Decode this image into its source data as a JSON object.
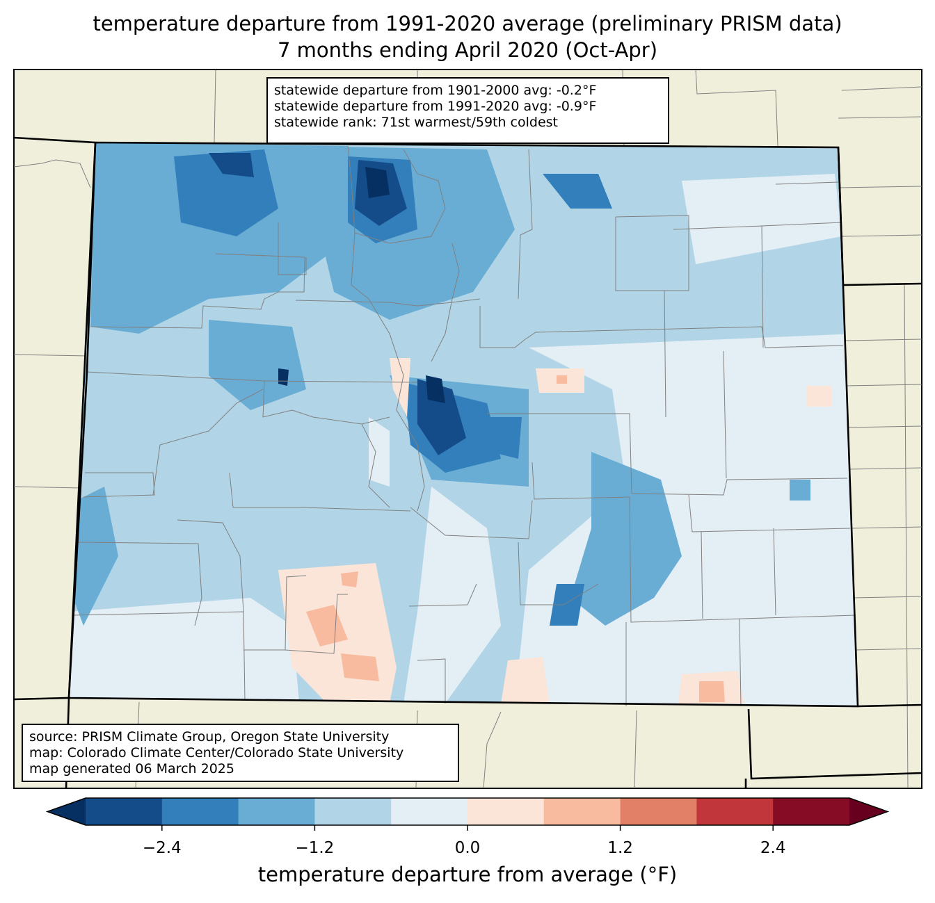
{
  "title": {
    "line1": "temperature departure from 1991-2020 average (preliminary PRISM data)",
    "line2": "7 months ending April 2020 (Oct-Apr)"
  },
  "stats": {
    "line1": "statewide departure from 1901-2000 avg: -0.2°F",
    "line2": "statewide departure from 1991-2020 avg: -0.9°F",
    "line3": "statewide rank: 71st warmest/59th coldest"
  },
  "credits": {
    "line1": "source: PRISM Climate Group, Oregon State University",
    "line2": "map: Colorado Climate Center/Colorado State University",
    "line3": "map generated 06 March 2025"
  },
  "colorbar": {
    "label": "temperature departure from average (°F)",
    "min": -3.0,
    "max": 3.0,
    "step": 0.6,
    "ticks": [
      "−2.4",
      "−1.2",
      "0.0",
      "1.2",
      "2.4"
    ],
    "tick_values": [
      -2.4,
      -1.2,
      0.0,
      1.2,
      2.4
    ],
    "colors": [
      "#053061",
      "#144c8a",
      "#327fbb",
      "#6aadd4",
      "#b1d5e7",
      "#e4eef5",
      "#fbe5d8",
      "#f8bba0",
      "#e17f67",
      "#c0363a",
      "#860b24",
      "#67001f"
    ]
  },
  "map_colors": {
    "background": "#f0efdc",
    "state_border": "#000000",
    "county_lines": "#808080"
  }
}
